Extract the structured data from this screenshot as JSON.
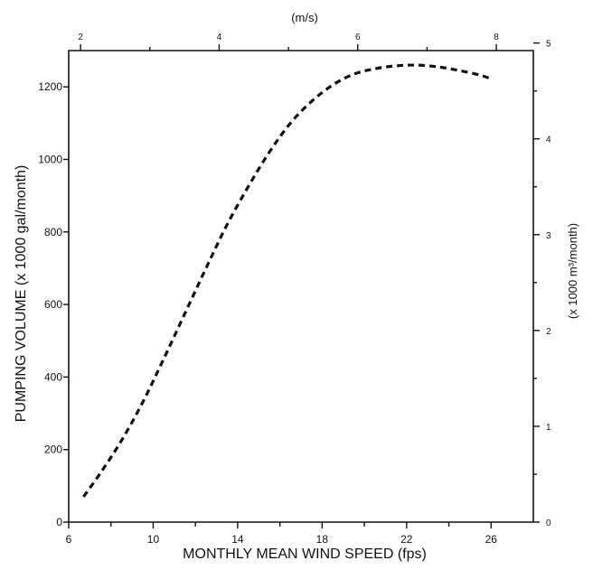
{
  "chart_data": {
    "type": "line",
    "title": "",
    "xlabel": "MONTHLY MEAN WIND SPEED (fps)",
    "ylabel": "PUMPING VOLUME (x 1000 gal/month)",
    "xlim": [
      6,
      28
    ],
    "ylim": [
      0,
      1300
    ],
    "x_ticks": [
      6,
      10,
      14,
      18,
      22,
      26
    ],
    "x_minor_ticks": [
      8,
      12,
      16,
      20,
      24
    ],
    "y_ticks": [
      0,
      200,
      400,
      600,
      800,
      1000,
      1200
    ],
    "secondary_x": {
      "label": "(m/s)",
      "ticks": [
        2,
        4,
        6,
        8
      ],
      "minor_ticks": [
        3,
        5,
        7
      ]
    },
    "secondary_y": {
      "label": "(x 1000 m³/month)",
      "ticks": [
        0,
        1,
        2,
        3,
        4,
        5
      ],
      "minor_ticks": [
        0.5,
        1.5,
        2.5,
        3.5,
        4.5,
        5.5
      ]
    },
    "series": [
      {
        "style": "dashed",
        "x": [
          6.7,
          7.5,
          8.5,
          9.5,
          10.5,
          11.5,
          12.5,
          13.5,
          14.5,
          15.5,
          16.5,
          17.5,
          18.5,
          19.5,
          20.5,
          21.5,
          22.5,
          23.5,
          24.5,
          25.5,
          26.0
        ],
        "y": [
          70,
          135,
          225,
          330,
          450,
          575,
          700,
          820,
          925,
          1020,
          1100,
          1160,
          1205,
          1235,
          1250,
          1258,
          1260,
          1255,
          1245,
          1232,
          1222
        ]
      }
    ]
  }
}
